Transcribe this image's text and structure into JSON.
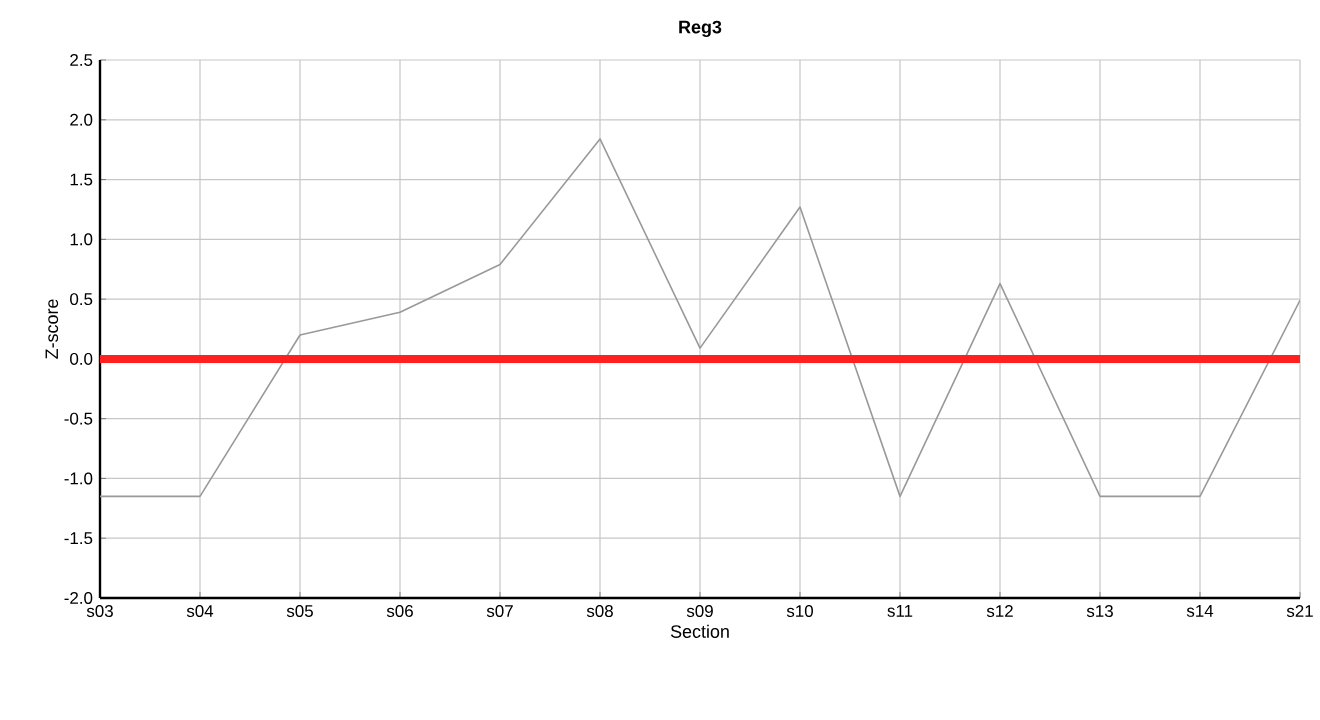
{
  "chart_data": {
    "type": "line",
    "title": "Reg3",
    "xlabel": "Section",
    "ylabel": "Z-score",
    "categories": [
      "s03",
      "s04",
      "s05",
      "s06",
      "s07",
      "s08",
      "s09",
      "s10",
      "s11",
      "s12",
      "s13",
      "s14",
      "s21"
    ],
    "series": [
      {
        "color": "#999999",
        "values": [
          -1.15,
          -1.15,
          0.2,
          0.39,
          0.79,
          1.84,
          0.09,
          1.27,
          -1.15,
          0.63,
          -1.15,
          -1.15,
          0.49
        ]
      }
    ],
    "ylim": [
      -2.0,
      2.5
    ],
    "yticks": [
      {
        "value": -2.0,
        "label": "-2.0"
      },
      {
        "value": -1.5,
        "label": "-1.5"
      },
      {
        "value": -1.0,
        "label": "-1.0"
      },
      {
        "value": -0.5,
        "label": "-0.5"
      },
      {
        "value": 0,
        "label": "0.0"
      },
      {
        "value": 0.5,
        "label": "0.5"
      },
      {
        "value": 1.0,
        "label": "1.0"
      },
      {
        "value": 1.5,
        "label": "1.5"
      },
      {
        "value": 2.0,
        "label": "2.0"
      },
      {
        "value": 2.5,
        "label": "2.5"
      }
    ],
    "ref_lines": [
      {
        "axis": "y",
        "value": 0,
        "color": "#ff2020"
      }
    ],
    "grid": true,
    "marker": "none",
    "line_style": "solid"
  }
}
